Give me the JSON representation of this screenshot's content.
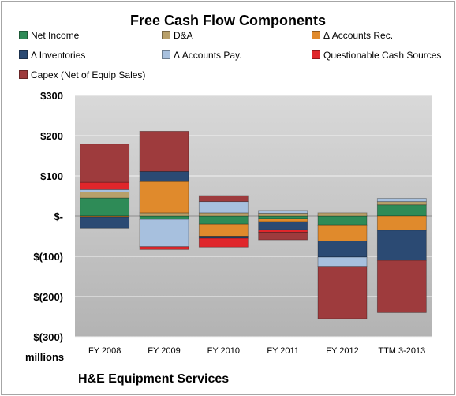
{
  "chart_data": {
    "type": "bar",
    "stacked": true,
    "title": "Free Cash Flow Components",
    "units_label": "millions",
    "company_label": "H&E Equipment Services",
    "categories": [
      "FY 2008",
      "FY 2009",
      "FY 2010",
      "FY 2011",
      "FY 2012",
      "TTM 3-2013"
    ],
    "ylim": [
      -300,
      300
    ],
    "yticks": [
      300,
      200,
      100,
      0,
      -100,
      -200,
      -300
    ],
    "ytick_labels": [
      "$300",
      "$200",
      "$100",
      "$-",
      "$(100)",
      "$(200)",
      "$(300)"
    ],
    "grid": true,
    "legend_position": "top",
    "series": [
      {
        "name": "Net Income",
        "color": "#2e8b57",
        "values": [
          45,
          -8,
          -20,
          -6,
          -22,
          28
        ]
      },
      {
        "name": "D&A",
        "color": "#b8a06a",
        "values": [
          15,
          8,
          8,
          7,
          8,
          8
        ]
      },
      {
        "name": "Δ Accounts Rec.",
        "color": "#e08a2c",
        "values": [
          -2,
          78,
          -30,
          -8,
          -40,
          -35
        ]
      },
      {
        "name": "Δ Inventories",
        "color": "#2b4a73",
        "values": [
          -28,
          25,
          -5,
          -20,
          -40,
          -75
        ]
      },
      {
        "name": "Δ Accounts Pay.",
        "color": "#a7c0de",
        "values": [
          6,
          -68,
          28,
          7,
          -23,
          8
        ]
      },
      {
        "name": "Questionable Cash Sources",
        "color": "#e0262b",
        "values": [
          18,
          -7,
          -22,
          -6,
          0,
          0
        ]
      },
      {
        "name": "Capex (Net of Equip Sales)",
        "color": "#9e3b3d",
        "values": [
          95,
          100,
          15,
          -19,
          -130,
          -130
        ]
      }
    ]
  }
}
